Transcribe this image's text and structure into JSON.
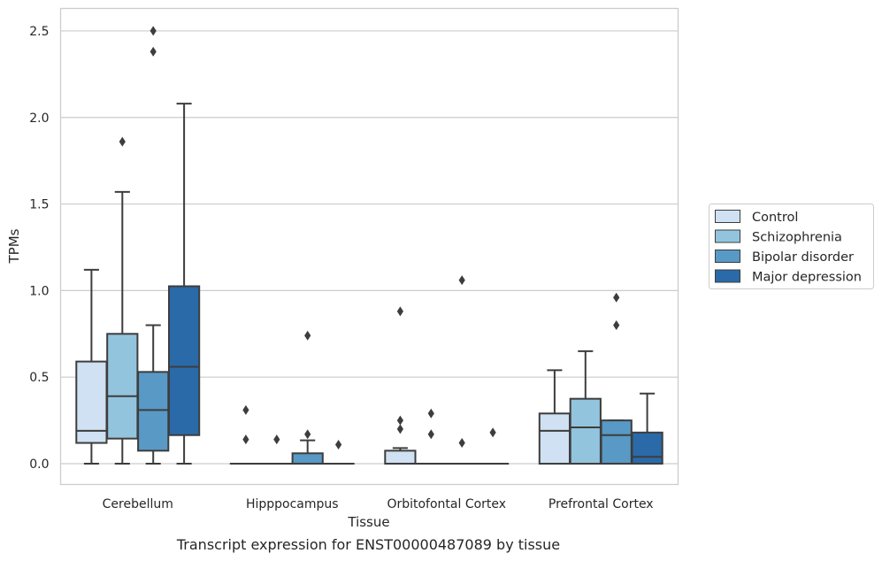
{
  "caption": "Transcript expression for ENST00000487089 by tissue",
  "chart_data": {
    "type": "boxplot",
    "xlabel": "Tissue",
    "ylabel": "TPMs",
    "ylim": [
      -0.12,
      2.63
    ],
    "yticks": [
      0.0,
      0.5,
      1.0,
      1.5,
      2.0,
      2.5
    ],
    "grid": "horizontal",
    "legend_position": "right",
    "categories": [
      "Cerebellum",
      "Hipppocampus",
      "Orbitofontal Cortex",
      "Prefrontal Cortex"
    ],
    "series": [
      {
        "name": "Control",
        "color": "#cfe1f2",
        "boxes": [
          {
            "whislo": 0.0,
            "q1": 0.12,
            "med": 0.19,
            "q3": 0.59,
            "whishi": 1.12,
            "fliers": []
          },
          {
            "whislo": 0.0,
            "q1": 0.0,
            "med": 0.0,
            "q3": 0.0,
            "whishi": 0.0,
            "fliers": [
              0.31,
              0.14
            ]
          },
          {
            "whislo": 0.0,
            "q1": 0.0,
            "med": 0.0,
            "q3": 0.075,
            "whishi": 0.09,
            "fliers": [
              0.88,
              0.25,
              0.2
            ]
          },
          {
            "whislo": 0.0,
            "q1": 0.0,
            "med": 0.19,
            "q3": 0.29,
            "whishi": 0.54,
            "fliers": []
          }
        ]
      },
      {
        "name": "Schizophrenia",
        "color": "#93c4de",
        "boxes": [
          {
            "whislo": 0.0,
            "q1": 0.145,
            "med": 0.39,
            "q3": 0.75,
            "whishi": 1.57,
            "fliers": [
              1.86
            ]
          },
          {
            "whislo": 0.0,
            "q1": 0.0,
            "med": 0.0,
            "q3": 0.0,
            "whishi": 0.0,
            "fliers": [
              0.14
            ]
          },
          {
            "whislo": 0.0,
            "q1": 0.0,
            "med": 0.0,
            "q3": 0.0,
            "whishi": 0.0,
            "fliers": [
              0.29,
              0.17
            ]
          },
          {
            "whislo": 0.0,
            "q1": 0.0,
            "med": 0.21,
            "q3": 0.375,
            "whishi": 0.65,
            "fliers": []
          }
        ]
      },
      {
        "name": "Bipolar disorder",
        "color": "#5899c5",
        "boxes": [
          {
            "whislo": 0.0,
            "q1": 0.075,
            "med": 0.31,
            "q3": 0.53,
            "whishi": 0.8,
            "fliers": [
              2.5,
              2.38
            ]
          },
          {
            "whislo": 0.0,
            "q1": 0.0,
            "med": 0.0,
            "q3": 0.06,
            "whishi": 0.135,
            "fliers": [
              0.74,
              0.17
            ]
          },
          {
            "whislo": 0.0,
            "q1": 0.0,
            "med": 0.0,
            "q3": 0.0,
            "whishi": 0.0,
            "fliers": [
              1.06,
              0.12
            ]
          },
          {
            "whislo": 0.0,
            "q1": 0.0,
            "med": 0.165,
            "q3": 0.25,
            "whishi": 0.25,
            "fliers": [
              0.96,
              0.8
            ]
          }
        ]
      },
      {
        "name": "Major depression",
        "color": "#2a6aa8",
        "boxes": [
          {
            "whislo": 0.0,
            "q1": 0.165,
            "med": 0.56,
            "q3": 1.025,
            "whishi": 2.08,
            "fliers": []
          },
          {
            "whislo": 0.0,
            "q1": 0.0,
            "med": 0.0,
            "q3": 0.0,
            "whishi": 0.0,
            "fliers": [
              0.11
            ]
          },
          {
            "whislo": 0.0,
            "q1": 0.0,
            "med": 0.0,
            "q3": 0.0,
            "whishi": 0.0,
            "fliers": [
              0.18
            ]
          },
          {
            "whislo": 0.0,
            "q1": 0.0,
            "med": 0.04,
            "q3": 0.18,
            "whishi": 0.405,
            "fliers": []
          }
        ]
      }
    ]
  }
}
